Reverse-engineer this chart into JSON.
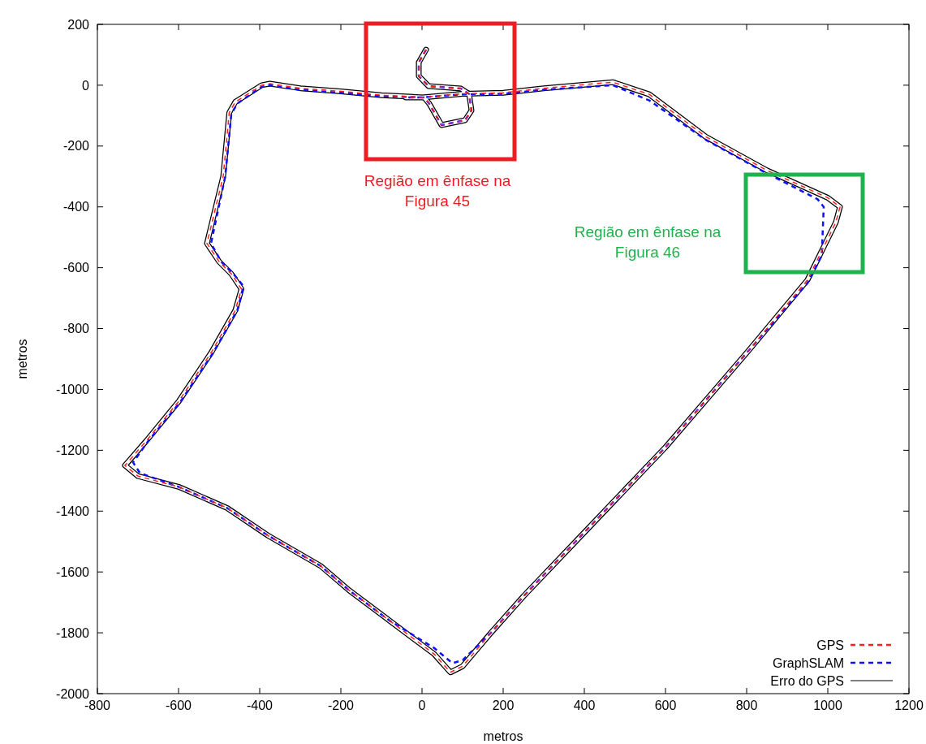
{
  "chart_data": {
    "type": "line",
    "xlabel": "metros",
    "ylabel": "metros",
    "xlim": [
      -800,
      1200
    ],
    "xticks": [
      -800,
      -600,
      -400,
      -200,
      0,
      200,
      400,
      600,
      800,
      1000,
      1200
    ],
    "ylim": [
      -2000,
      200
    ],
    "yticks": [
      -2000,
      -1800,
      -1600,
      -1400,
      -1200,
      -1000,
      -800,
      -600,
      -400,
      -200,
      0,
      200
    ],
    "legend": "bottom right",
    "grid": false,
    "series": [
      {
        "name": "GPS",
        "color": "#ff2020",
        "line_style": "dashed",
        "x": [
          10,
          -8,
          -8,
          16,
          96,
          116,
          122,
          106,
          48,
          18,
          5,
          -100,
          -200,
          -300,
          -375,
          -395,
          -460,
          -475,
          -490,
          -530,
          -500,
          -470,
          -445,
          -460,
          -520,
          -600,
          -680,
          -732,
          -700,
          -600,
          -480,
          -380,
          -250,
          -180,
          -80,
          30,
          70,
          100,
          170,
          250,
          400,
          600,
          800,
          950,
          1020,
          1030,
          1000,
          850,
          700,
          560,
          470,
          300,
          200,
          100,
          0,
          -40
        ],
        "values": [
          117,
          75,
          30,
          -3,
          -11,
          -29,
          -83,
          -115,
          -131,
          -61,
          -40,
          -33,
          -20,
          -10,
          5,
          0,
          -55,
          -90,
          -300,
          -520,
          -580,
          -620,
          -670,
          -740,
          -880,
          -1040,
          -1170,
          -1250,
          -1285,
          -1320,
          -1390,
          -1480,
          -1580,
          -1660,
          -1760,
          -1870,
          -1930,
          -1910,
          -1800,
          -1680,
          -1470,
          -1190,
          -880,
          -640,
          -450,
          -400,
          -370,
          -280,
          -170,
          -30,
          10,
          -10,
          -25,
          -28,
          -40,
          -40
        ]
      },
      {
        "name": "GraphSLAM",
        "color": "#1010ff",
        "line_style": "dashed",
        "x": [
          10,
          -8,
          -8,
          16,
          96,
          116,
          122,
          106,
          48,
          18,
          5,
          -100,
          -200,
          -300,
          -375,
          -395,
          -455,
          -470,
          -485,
          -520,
          -495,
          -465,
          -440,
          -455,
          -515,
          -595,
          -675,
          -712,
          -695,
          -600,
          -480,
          -380,
          -250,
          -180,
          -80,
          30,
          75,
          100,
          170,
          250,
          400,
          600,
          800,
          950,
          985,
          990,
          975,
          850,
          700,
          560,
          470,
          300,
          200,
          100,
          0,
          -40
        ],
        "values": [
          117,
          75,
          30,
          -3,
          -11,
          -29,
          -83,
          -115,
          -131,
          -61,
          -40,
          -36,
          -25,
          -15,
          0,
          -5,
          -60,
          -95,
          -300,
          -520,
          -580,
          -620,
          -660,
          -740,
          -880,
          -1040,
          -1170,
          -1240,
          -1275,
          -1320,
          -1390,
          -1480,
          -1580,
          -1660,
          -1760,
          -1850,
          -1900,
          -1890,
          -1800,
          -1680,
          -1470,
          -1190,
          -880,
          -650,
          -560,
          -400,
          -375,
          -290,
          -180,
          -50,
          0,
          -15,
          -28,
          -30,
          -40,
          -40
        ]
      },
      {
        "name": "Erro do GPS",
        "color": "#000000",
        "line_style": "solid",
        "x": [
          10,
          -8,
          -8,
          16,
          96,
          116,
          122,
          106,
          48,
          18,
          5,
          -100,
          -200,
          -300,
          -375,
          -395,
          -460,
          -475,
          -490,
          -530,
          -500,
          -470,
          -445,
          -460,
          -520,
          -600,
          -680,
          -732,
          -700,
          -600,
          -480,
          -380,
          -250,
          -180,
          -80,
          30,
          70,
          100,
          170,
          250,
          400,
          600,
          800,
          950,
          1020,
          1030,
          1000,
          850,
          700,
          560,
          470,
          300,
          200,
          100,
          0,
          -40
        ],
        "values": [
          117,
          75,
          30,
          -3,
          -11,
          -29,
          -83,
          -115,
          -131,
          -61,
          -40,
          -33,
          -20,
          -10,
          5,
          0,
          -55,
          -90,
          -300,
          -520,
          -580,
          -620,
          -670,
          -740,
          -880,
          -1040,
          -1170,
          -1250,
          -1285,
          -1320,
          -1390,
          -1480,
          -1580,
          -1660,
          -1760,
          -1870,
          -1930,
          -1910,
          -1800,
          -1680,
          -1470,
          -1190,
          -880,
          -640,
          -450,
          -400,
          -370,
          -280,
          -170,
          -30,
          10,
          -10,
          -25,
          -28,
          -40,
          -40
        ]
      }
    ],
    "annotations": [
      "Região em ênfase na\nFigura 45",
      "Região em ênfase na\nFigura 46"
    ]
  }
}
